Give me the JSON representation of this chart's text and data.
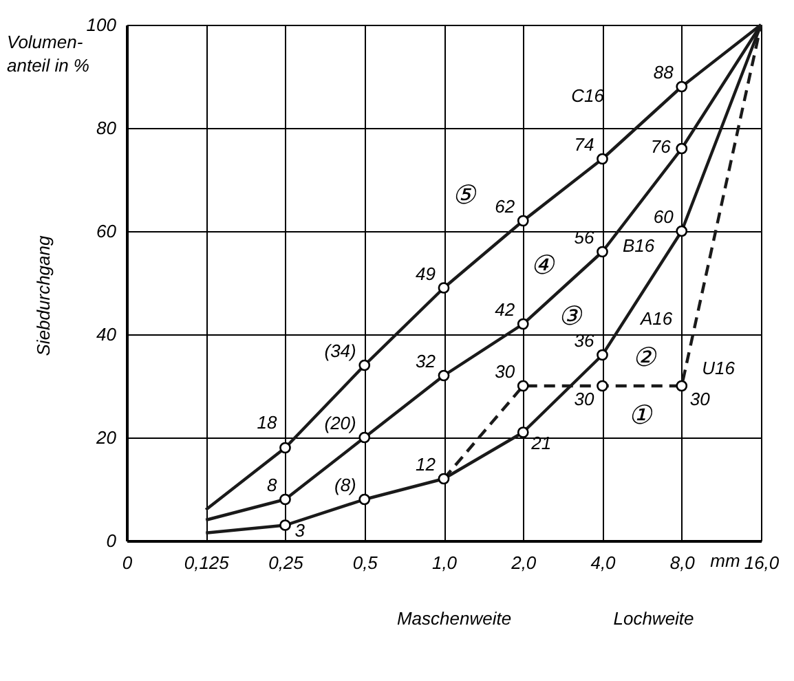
{
  "chart_data": {
    "type": "line",
    "ylabel": "Siebdurchgang",
    "xlabel": "Maschenweite",
    "categories": [
      "0",
      "0,125",
      "0,25",
      "0,5",
      "1,0",
      "2,0",
      "4,0",
      "8,0",
      "16,0"
    ],
    "series": [
      {
        "name": "C16",
        "color": "#1a1a1a",
        "line_style": "solid",
        "values": [
          null,
          6,
          18,
          34,
          49,
          62,
          74,
          88,
          100
        ],
        "value_labels": [
          null,
          null,
          "18",
          "(34)",
          "49",
          "62",
          "74",
          "88",
          null
        ]
      },
      {
        "name": "B16",
        "color": "#1a1a1a",
        "line_style": "solid",
        "values": [
          null,
          4,
          8,
          20,
          32,
          42,
          56,
          76,
          100
        ],
        "value_labels": [
          null,
          null,
          "8",
          "(20)",
          "32",
          "42",
          "56",
          "76",
          null
        ]
      },
      {
        "name": "A16",
        "color": "#1a1a1a",
        "line_style": "solid",
        "values": [
          null,
          1.5,
          3,
          8,
          12,
          21,
          36,
          60,
          100
        ],
        "value_labels": [
          null,
          null,
          "3",
          "(8)",
          "12",
          "21",
          "36",
          "60",
          null
        ]
      },
      {
        "name": "U16",
        "color": "#1a1a1a",
        "line_style": "dashed",
        "values": [
          null,
          null,
          null,
          null,
          12,
          30,
          30,
          30,
          100
        ],
        "value_labels": [
          null,
          null,
          null,
          null,
          null,
          "30",
          "30",
          "30",
          null
        ]
      }
    ],
    "ylim": [
      0,
      100
    ],
    "yticks": [
      0,
      20,
      40,
      60,
      80,
      100
    ],
    "grid": true,
    "legend": false,
    "marker": "circle",
    "annotations": [
      "Volumen-anteil in %",
      "Lochweite",
      "mm",
      "⑤",
      "④",
      "③",
      "②",
      "①"
    ]
  }
}
